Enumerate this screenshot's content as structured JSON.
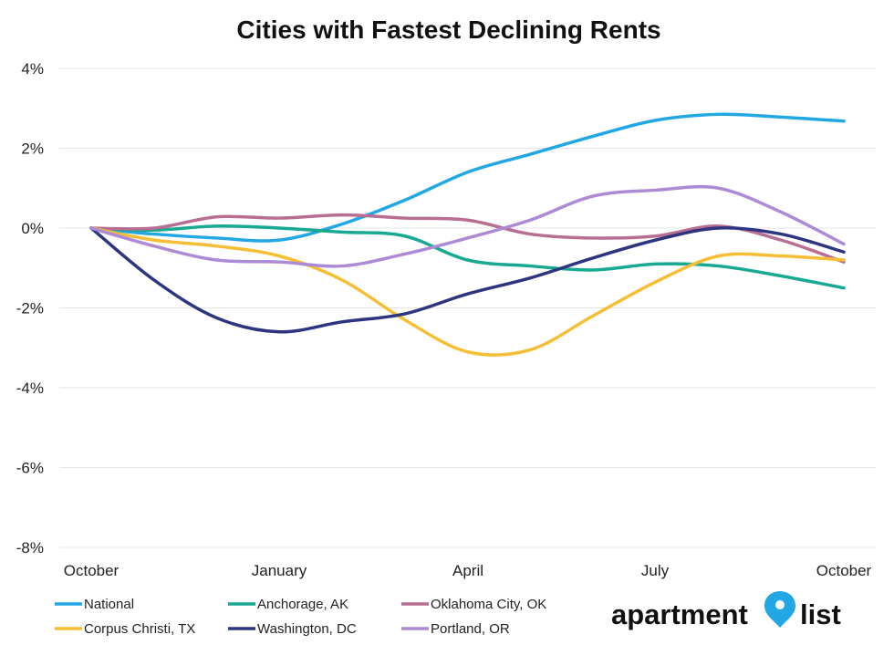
{
  "chart_data": {
    "type": "line",
    "title": "Cities with Fastest Declining Rents",
    "xlabel": "",
    "ylabel": "",
    "x_tick_labels": [
      "October",
      "January",
      "April",
      "July",
      "October"
    ],
    "y_ticks": [
      4,
      2,
      0,
      -2,
      -4,
      -6,
      -8
    ],
    "y_tick_labels": [
      "4%",
      "2%",
      "0%",
      "-2%",
      "-4%",
      "-6%",
      "-8%"
    ],
    "ylim": [
      -8,
      4
    ],
    "x_months": 12,
    "grid": true,
    "legend_position": "bottom",
    "series": [
      {
        "name": "National",
        "color": "#21a7e3",
        "values": [
          0,
          -0.15,
          -0.25,
          -0.3,
          0.1,
          0.7,
          1.4,
          1.85,
          2.3,
          2.7,
          2.85,
          2.78,
          2.68
        ]
      },
      {
        "name": "Anchorage, AK",
        "color": "#17a992",
        "values": [
          0,
          -0.05,
          0.05,
          0.0,
          -0.1,
          -0.2,
          -0.8,
          -0.95,
          -1.05,
          -0.9,
          -0.95,
          -1.2,
          -1.5
        ]
      },
      {
        "name": "Oklahoma City, OK",
        "color": "#b86e93",
        "values": [
          0,
          0.0,
          0.28,
          0.25,
          0.33,
          0.25,
          0.2,
          -0.15,
          -0.25,
          -0.2,
          0.05,
          -0.3,
          -0.85
        ]
      },
      {
        "name": "Corpus Christi, TX",
        "color": "#f5be35",
        "values": [
          0,
          -0.3,
          -0.45,
          -0.7,
          -1.3,
          -2.3,
          -3.1,
          -3.05,
          -2.2,
          -1.35,
          -0.7,
          -0.7,
          -0.8
        ]
      },
      {
        "name": "Washington, DC",
        "color": "#2e3580",
        "values": [
          0,
          -1.3,
          -2.25,
          -2.6,
          -2.35,
          -2.15,
          -1.65,
          -1.25,
          -0.75,
          -0.3,
          0.0,
          -0.15,
          -0.6
        ]
      },
      {
        "name": "Portland, OR",
        "color": "#ad8ad6",
        "values": [
          0,
          -0.45,
          -0.8,
          -0.85,
          -0.95,
          -0.65,
          -0.25,
          0.2,
          0.8,
          0.95,
          1.0,
          0.4,
          -0.4
        ]
      }
    ]
  },
  "brand": {
    "text_left": "apartment",
    "text_right": "list",
    "icon": "location-pin-icon",
    "pin_color": "#21a7e3"
  }
}
